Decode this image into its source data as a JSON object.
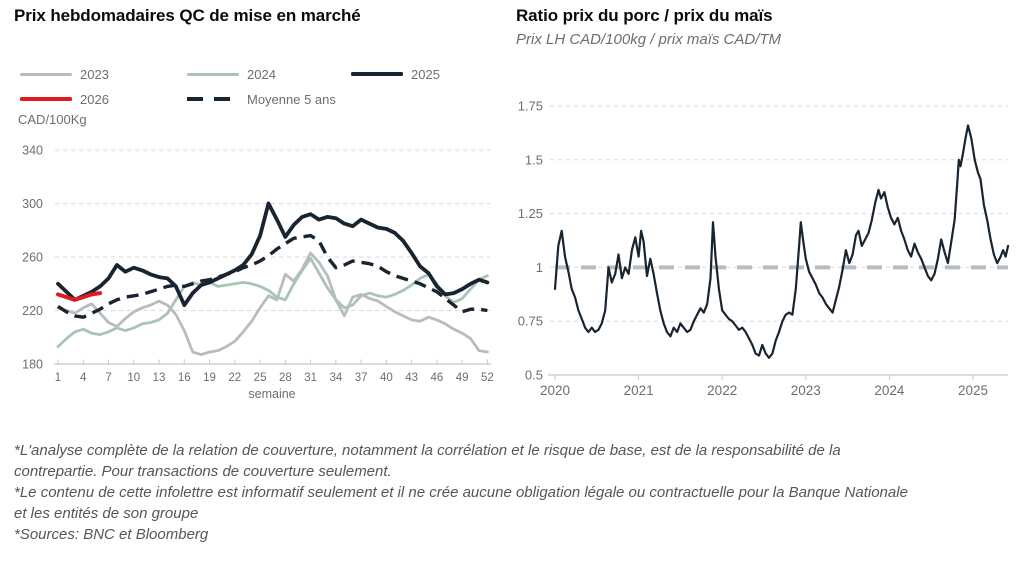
{
  "footnotes": [
    "*L'analyse complète de la relation de couverture, notamment la corrélation et le risque de base, est de la responsabilité de la contrepartie. Pour transactions de couverture seulement.",
    "*Le contenu de cette infolettre est informatif seulement et il ne crée aucune obligation légale ou contractuelle pour la Banque Nationale et les entités de son groupe",
    "*Sources: BNC et Bloomberg"
  ],
  "chart_data": [
    {
      "type": "line",
      "title": "Prix hebdomadaires QC de mise en marché",
      "ylabel": "CAD/100Kg",
      "xlabel": "semaine",
      "xlim": [
        1,
        52
      ],
      "ylim": [
        180,
        340
      ],
      "x_ticks": [
        1,
        4,
        7,
        10,
        13,
        16,
        19,
        22,
        25,
        28,
        31,
        34,
        37,
        40,
        43,
        46,
        49,
        52
      ],
      "y_ticks": [
        220,
        260,
        300,
        340
      ],
      "y_base": 180,
      "grid": "horizontal-dashed",
      "legend_position": "top",
      "series": [
        {
          "name": "2023",
          "color": "#b9bcbe",
          "style": "solid",
          "width": 2.8,
          "values": [
            222,
            220,
            218,
            222,
            225,
            218,
            211,
            208,
            214,
            219,
            222,
            224,
            227,
            224,
            217,
            205,
            189,
            187,
            189,
            190,
            193,
            197,
            204,
            212,
            222,
            231,
            228,
            247,
            242,
            251,
            263,
            256,
            246,
            228,
            216,
            230,
            232,
            229,
            227,
            223,
            219,
            216,
            213,
            212,
            215,
            213,
            210,
            206,
            203,
            199,
            190,
            189
          ]
        },
        {
          "name": "2024",
          "color": "#a9c3b6",
          "style": "solid",
          "width": 2.8,
          "values": [
            193,
            199,
            204,
            206,
            203,
            202,
            204,
            207,
            205,
            207,
            210,
            211,
            213,
            218,
            228,
            238,
            241,
            239,
            241,
            238,
            239,
            240,
            241,
            240,
            238,
            235,
            230,
            228,
            240,
            250,
            259,
            248,
            237,
            228,
            222,
            224,
            231,
            233,
            231,
            230,
            232,
            235,
            239,
            244,
            247,
            240,
            231,
            226,
            229,
            236,
            243,
            246
          ]
        },
        {
          "name": "2025",
          "color": "#182430",
          "style": "solid",
          "width": 3.8,
          "values": [
            240,
            234,
            228,
            231,
            234,
            238,
            244,
            254,
            249,
            252,
            250,
            247,
            245,
            244,
            238,
            224,
            233,
            239,
            241,
            244,
            247,
            250,
            254,
            262,
            276,
            300,
            288,
            275,
            284,
            290,
            292,
            288,
            290,
            289,
            285,
            283,
            288,
            285,
            282,
            281,
            278,
            272,
            263,
            253,
            248,
            238,
            232,
            233,
            236,
            240,
            243,
            241
          ]
        },
        {
          "name": "2026",
          "color": "#e01a22",
          "style": "solid",
          "width": 4,
          "values": [
            232,
            230,
            228,
            230,
            232,
            233
          ]
        },
        {
          "name": "Moyenne 5 ans",
          "color": "#182430",
          "style": "dashed",
          "width": 3.4,
          "values": [
            223,
            219,
            216,
            215,
            218,
            221,
            225,
            228,
            230,
            231,
            232,
            234,
            236,
            238,
            239,
            238,
            240,
            242,
            243,
            245,
            247,
            249,
            252,
            254,
            257,
            261,
            266,
            270,
            274,
            275,
            276,
            272,
            260,
            252,
            254,
            257,
            256,
            255,
            253,
            249,
            246,
            244,
            242,
            240,
            237,
            234,
            229,
            224,
            219,
            221,
            221,
            220
          ]
        }
      ]
    },
    {
      "type": "line",
      "title": "Ratio prix du porc / prix du maïs",
      "subtitle": "Prix LH CAD/100kg / prix maïs CAD/TM",
      "xlim": [
        2020,
        2025.45
      ],
      "ylim": [
        0.5,
        1.75
      ],
      "x_ticks": [
        2020,
        2021,
        2022,
        2023,
        2024,
        2025
      ],
      "y_ticks": [
        0.75,
        1,
        1.25,
        1.5,
        1.75
      ],
      "y_tick_labels": [
        "0.75",
        "1",
        "1.25",
        "1.5",
        "1.75"
      ],
      "y_base_label": "0.5",
      "y_base": 0.5,
      "grid": "horizontal-dashed",
      "reference_line": {
        "y": 1,
        "color": "#b9bcbe"
      },
      "series": [
        {
          "name": "Ratio porc / maïs",
          "color": "#182430",
          "style": "solid",
          "width": 2.2,
          "points": [
            [
              2020.0,
              0.9
            ],
            [
              2020.04,
              1.1
            ],
            [
              2020.08,
              1.17
            ],
            [
              2020.12,
              1.05
            ],
            [
              2020.16,
              0.98
            ],
            [
              2020.2,
              0.9
            ],
            [
              2020.24,
              0.86
            ],
            [
              2020.28,
              0.8
            ],
            [
              2020.32,
              0.76
            ],
            [
              2020.36,
              0.72
            ],
            [
              2020.4,
              0.7
            ],
            [
              2020.44,
              0.72
            ],
            [
              2020.48,
              0.7
            ],
            [
              2020.52,
              0.71
            ],
            [
              2020.56,
              0.74
            ],
            [
              2020.6,
              0.8
            ],
            [
              2020.64,
              1.0
            ],
            [
              2020.68,
              0.93
            ],
            [
              2020.72,
              0.97
            ],
            [
              2020.76,
              1.06
            ],
            [
              2020.8,
              0.95
            ],
            [
              2020.84,
              1.0
            ],
            [
              2020.88,
              0.97
            ],
            [
              2020.92,
              1.08
            ],
            [
              2020.96,
              1.14
            ],
            [
              2021.0,
              1.05
            ],
            [
              2021.03,
              1.17
            ],
            [
              2021.06,
              1.12
            ],
            [
              2021.1,
              0.96
            ],
            [
              2021.14,
              1.04
            ],
            [
              2021.18,
              0.97
            ],
            [
              2021.22,
              0.88
            ],
            [
              2021.26,
              0.8
            ],
            [
              2021.3,
              0.74
            ],
            [
              2021.34,
              0.7
            ],
            [
              2021.38,
              0.68
            ],
            [
              2021.42,
              0.72
            ],
            [
              2021.46,
              0.7
            ],
            [
              2021.5,
              0.74
            ],
            [
              2021.54,
              0.72
            ],
            [
              2021.58,
              0.7
            ],
            [
              2021.62,
              0.71
            ],
            [
              2021.66,
              0.75
            ],
            [
              2021.7,
              0.78
            ],
            [
              2021.74,
              0.81
            ],
            [
              2021.78,
              0.79
            ],
            [
              2021.82,
              0.83
            ],
            [
              2021.86,
              0.95
            ],
            [
              2021.89,
              1.21
            ],
            [
              2021.92,
              1.05
            ],
            [
              2021.96,
              0.9
            ],
            [
              2022.0,
              0.8
            ],
            [
              2022.04,
              0.78
            ],
            [
              2022.08,
              0.76
            ],
            [
              2022.12,
              0.75
            ],
            [
              2022.16,
              0.73
            ],
            [
              2022.2,
              0.71
            ],
            [
              2022.24,
              0.72
            ],
            [
              2022.28,
              0.7
            ],
            [
              2022.32,
              0.67
            ],
            [
              2022.36,
              0.64
            ],
            [
              2022.4,
              0.6
            ],
            [
              2022.44,
              0.59
            ],
            [
              2022.48,
              0.64
            ],
            [
              2022.52,
              0.6
            ],
            [
              2022.56,
              0.58
            ],
            [
              2022.6,
              0.6
            ],
            [
              2022.64,
              0.66
            ],
            [
              2022.68,
              0.7
            ],
            [
              2022.72,
              0.75
            ],
            [
              2022.76,
              0.78
            ],
            [
              2022.8,
              0.79
            ],
            [
              2022.84,
              0.78
            ],
            [
              2022.88,
              0.9
            ],
            [
              2022.92,
              1.1
            ],
            [
              2022.94,
              1.21
            ],
            [
              2022.97,
              1.12
            ],
            [
              2023.0,
              1.04
            ],
            [
              2023.04,
              0.98
            ],
            [
              2023.08,
              0.95
            ],
            [
              2023.12,
              0.92
            ],
            [
              2023.16,
              0.88
            ],
            [
              2023.2,
              0.86
            ],
            [
              2023.24,
              0.83
            ],
            [
              2023.28,
              0.81
            ],
            [
              2023.32,
              0.79
            ],
            [
              2023.36,
              0.85
            ],
            [
              2023.4,
              0.91
            ],
            [
              2023.44,
              0.99
            ],
            [
              2023.48,
              1.08
            ],
            [
              2023.52,
              1.02
            ],
            [
              2023.56,
              1.06
            ],
            [
              2023.6,
              1.15
            ],
            [
              2023.63,
              1.17
            ],
            [
              2023.67,
              1.1
            ],
            [
              2023.71,
              1.13
            ],
            [
              2023.75,
              1.16
            ],
            [
              2023.79,
              1.22
            ],
            [
              2023.83,
              1.3
            ],
            [
              2023.87,
              1.36
            ],
            [
              2023.9,
              1.32
            ],
            [
              2023.94,
              1.35
            ],
            [
              2023.98,
              1.28
            ],
            [
              2024.02,
              1.23
            ],
            [
              2024.06,
              1.2
            ],
            [
              2024.1,
              1.23
            ],
            [
              2024.14,
              1.17
            ],
            [
              2024.18,
              1.13
            ],
            [
              2024.22,
              1.08
            ],
            [
              2024.26,
              1.05
            ],
            [
              2024.3,
              1.11
            ],
            [
              2024.34,
              1.07
            ],
            [
              2024.38,
              1.04
            ],
            [
              2024.42,
              1.0
            ],
            [
              2024.46,
              0.96
            ],
            [
              2024.5,
              0.94
            ],
            [
              2024.54,
              0.97
            ],
            [
              2024.58,
              1.04
            ],
            [
              2024.62,
              1.13
            ],
            [
              2024.66,
              1.07
            ],
            [
              2024.7,
              1.02
            ],
            [
              2024.74,
              1.12
            ],
            [
              2024.78,
              1.22
            ],
            [
              2024.81,
              1.38
            ],
            [
              2024.83,
              1.5
            ],
            [
              2024.85,
              1.47
            ],
            [
              2024.88,
              1.53
            ],
            [
              2024.91,
              1.6
            ],
            [
              2024.94,
              1.66
            ],
            [
              2024.98,
              1.6
            ],
            [
              2025.02,
              1.5
            ],
            [
              2025.06,
              1.44
            ],
            [
              2025.09,
              1.41
            ],
            [
              2025.13,
              1.29
            ],
            [
              2025.17,
              1.22
            ],
            [
              2025.21,
              1.13
            ],
            [
              2025.25,
              1.06
            ],
            [
              2025.29,
              1.02
            ],
            [
              2025.33,
              1.05
            ],
            [
              2025.36,
              1.08
            ],
            [
              2025.39,
              1.05
            ],
            [
              2025.42,
              1.1
            ]
          ]
        }
      ]
    }
  ]
}
